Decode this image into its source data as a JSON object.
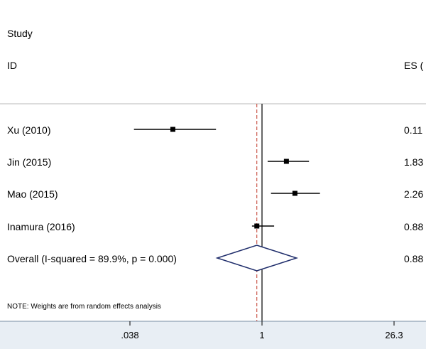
{
  "header": {
    "study_label": "Study",
    "id_label": "ID",
    "es_label": "ES ("
  },
  "note": "NOTE: Weights are from random effects analysis",
  "colors": {
    "background": "#ffffff",
    "axis_strip": "#e8eef4",
    "null_line": "#000000",
    "overall_line": "#c0392b",
    "diamond": "#1f2d6b",
    "point": "#000000",
    "ci": "#000000"
  },
  "chart_data": {
    "type": "forest",
    "scale": "log",
    "xlim": [
      0.038,
      26.3
    ],
    "x_ticks": [
      {
        "value": 0.038,
        "label": ".038"
      },
      {
        "value": 1,
        "label": "1"
      },
      {
        "value": 26.3,
        "label": "26.3"
      }
    ],
    "null_value": 1,
    "studies": [
      {
        "label": "Xu (2010)",
        "es": 0.11,
        "ci": [
          0.042,
          0.32
        ],
        "es_text": "0.11"
      },
      {
        "label": "Jin (2015)",
        "es": 1.83,
        "ci": [
          1.15,
          3.2
        ],
        "es_text": "1.83"
      },
      {
        "label": "Mao (2015)",
        "es": 2.26,
        "ci": [
          1.25,
          4.2
        ],
        "es_text": "2.26"
      },
      {
        "label": "Inamura (2016)",
        "es": 0.88,
        "ci": [
          0.78,
          1.35
        ],
        "es_text": "0.88"
      }
    ],
    "overall": {
      "label": "Overall  (I-squared = 89.9%, p = 0.000)",
      "es": 0.88,
      "ci": [
        0.33,
        2.35
      ],
      "es_text": "0.88"
    }
  }
}
